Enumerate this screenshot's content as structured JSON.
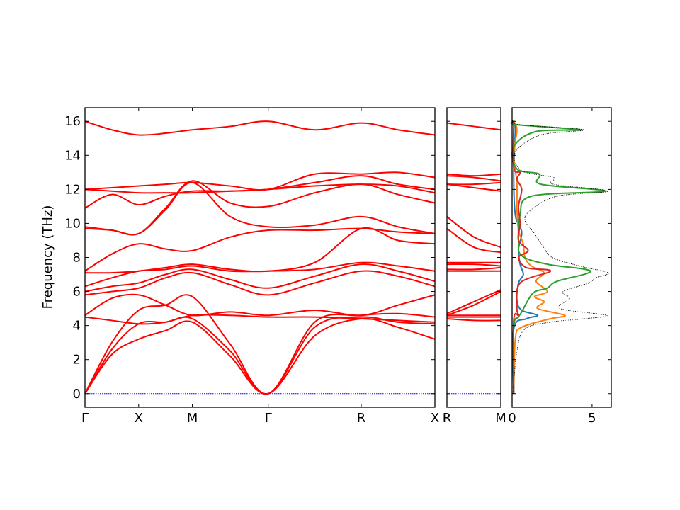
{
  "chart_data": [
    {
      "type": "line",
      "panel": "band-structure-main",
      "ylabel": "Frequency (THz)",
      "ylim": [
        -0.8,
        16.8
      ],
      "xlim": [
        0,
        2.803
      ],
      "yticks": [
        0,
        2,
        4,
        6,
        8,
        10,
        12,
        14,
        16
      ],
      "high_symmetry_points": [
        {
          "label": "Γ",
          "x": 0
        },
        {
          "label": "X",
          "x": 0.43
        },
        {
          "label": "M",
          "x": 0.86
        },
        {
          "label": "Γ",
          "x": 1.468
        },
        {
          "label": "R",
          "x": 2.213
        },
        {
          "label": "X",
          "x": 2.803
        }
      ],
      "series_color": "#ff0000",
      "zero_line_color": "#0000ff",
      "bands": [
        {
          "x": [
            0,
            0.215,
            0.43,
            0.645,
            0.86,
            1.164,
            1.468,
            1.84,
            2.213,
            2.508,
            2.803
          ],
          "y": [
            0.0,
            2.3,
            3.2,
            3.7,
            4.2,
            2.2,
            0.0,
            3.4,
            4.4,
            3.9,
            3.2
          ]
        },
        {
          "x": [
            0,
            0.215,
            0.43,
            0.645,
            0.86,
            1.164,
            1.468,
            1.84,
            2.213,
            2.508,
            2.803
          ],
          "y": [
            0.0,
            2.6,
            4.1,
            4.2,
            4.4,
            2.5,
            0.0,
            3.9,
            4.5,
            4.2,
            4.1
          ]
        },
        {
          "x": [
            0,
            0.215,
            0.43,
            0.645,
            0.86,
            1.164,
            1.468,
            1.84,
            2.213,
            2.508,
            2.803
          ],
          "y": [
            0.0,
            3.0,
            4.9,
            5.2,
            5.7,
            2.9,
            0.0,
            4.2,
            4.6,
            4.7,
            4.5
          ]
        },
        {
          "x": [
            0,
            0.215,
            0.43,
            0.645,
            0.86,
            1.164,
            1.468,
            1.84,
            2.213,
            2.508,
            2.803
          ],
          "y": [
            4.5,
            4.3,
            4.1,
            4.2,
            4.6,
            4.6,
            4.5,
            4.5,
            4.4,
            4.3,
            4.2
          ]
        },
        {
          "x": [
            0,
            0.215,
            0.43,
            0.645,
            0.86,
            1.164,
            1.468,
            1.84,
            2.213,
            2.508,
            2.803
          ],
          "y": [
            4.6,
            5.6,
            5.8,
            5.2,
            4.6,
            4.8,
            4.6,
            4.9,
            4.6,
            5.2,
            5.8
          ]
        },
        {
          "x": [
            0,
            0.215,
            0.43,
            0.645,
            0.86,
            1.164,
            1.468,
            1.84,
            2.213,
            2.508,
            2.803
          ],
          "y": [
            5.8,
            6.0,
            6.2,
            6.8,
            7.1,
            6.4,
            5.8,
            6.5,
            7.2,
            6.9,
            6.3
          ]
        },
        {
          "x": [
            0,
            0.215,
            0.43,
            0.645,
            0.86,
            1.164,
            1.468,
            1.84,
            2.213,
            2.508,
            2.803
          ],
          "y": [
            6.0,
            6.3,
            6.5,
            7.0,
            7.3,
            6.7,
            6.2,
            6.9,
            7.6,
            7.2,
            6.6
          ]
        },
        {
          "x": [
            0,
            0.215,
            0.43,
            0.645,
            0.86,
            1.164,
            1.468,
            1.84,
            2.213,
            2.508,
            2.803
          ],
          "y": [
            6.3,
            6.8,
            7.2,
            7.3,
            7.5,
            7.2,
            7.2,
            7.3,
            7.7,
            7.5,
            7.2
          ]
        },
        {
          "x": [
            0,
            0.215,
            0.43,
            0.645,
            0.86,
            1.164,
            1.468,
            1.84,
            2.213,
            2.508,
            2.803
          ],
          "y": [
            7.1,
            7.1,
            7.2,
            7.4,
            7.6,
            7.3,
            7.2,
            7.7,
            9.7,
            9.0,
            8.8
          ]
        },
        {
          "x": [
            0,
            0.215,
            0.43,
            0.645,
            0.86,
            1.164,
            1.468,
            1.84,
            2.213,
            2.508,
            2.803
          ],
          "y": [
            7.2,
            8.2,
            8.8,
            8.5,
            8.4,
            9.2,
            9.6,
            9.6,
            9.7,
            9.5,
            9.4
          ]
        },
        {
          "x": [
            0,
            0.215,
            0.43,
            0.645,
            0.86,
            1.164,
            1.468,
            1.84,
            2.213,
            2.508,
            2.803
          ],
          "y": [
            9.7,
            9.6,
            9.4,
            10.8,
            12.4,
            10.4,
            9.8,
            9.9,
            10.4,
            9.8,
            9.4
          ]
        },
        {
          "x": [
            0,
            0.215,
            0.43,
            0.645,
            0.86,
            1.164,
            1.468,
            1.84,
            2.213,
            2.508,
            2.803
          ],
          "y": [
            9.8,
            9.6,
            9.4,
            10.9,
            12.5,
            11.2,
            11.0,
            11.8,
            12.3,
            11.7,
            11.2
          ]
        },
        {
          "x": [
            0,
            0.215,
            0.43,
            0.645,
            0.86,
            1.164,
            1.468,
            1.84,
            2.213,
            2.508,
            2.803
          ],
          "y": [
            10.9,
            11.7,
            11.1,
            11.6,
            11.9,
            11.9,
            12.0,
            12.2,
            12.3,
            12.2,
            11.8
          ]
        },
        {
          "x": [
            0,
            0.215,
            0.43,
            0.645,
            0.86,
            1.164,
            1.468,
            1.84,
            2.213,
            2.508,
            2.803
          ],
          "y": [
            12.0,
            11.9,
            11.8,
            11.8,
            11.8,
            11.9,
            12.0,
            12.4,
            12.8,
            12.3,
            12.0
          ]
        },
        {
          "x": [
            0,
            0.215,
            0.43,
            0.645,
            0.86,
            1.164,
            1.468,
            1.84,
            2.213,
            2.508,
            2.803
          ],
          "y": [
            12.0,
            12.1,
            12.2,
            12.3,
            12.4,
            12.2,
            12.0,
            12.9,
            12.9,
            13.0,
            12.7
          ]
        },
        {
          "x": [
            0,
            0.215,
            0.43,
            0.645,
            0.86,
            1.164,
            1.468,
            1.84,
            2.213,
            2.508,
            2.803
          ],
          "y": [
            16.0,
            15.5,
            15.2,
            15.3,
            15.5,
            15.7,
            16.0,
            15.5,
            15.9,
            15.5,
            15.2
          ]
        }
      ]
    },
    {
      "type": "line",
      "panel": "band-structure-R-M",
      "ylim": [
        -0.8,
        16.8
      ],
      "high_symmetry_points": [
        {
          "label": "R",
          "x": 0
        },
        {
          "label": "M",
          "x": 0.43
        }
      ],
      "series_color": "#ff0000",
      "bands": [
        {
          "x": [
            0,
            0.215,
            0.43
          ],
          "y": [
            4.4,
            4.3,
            4.3
          ]
        },
        {
          "x": [
            0,
            0.215,
            0.43
          ],
          "y": [
            4.5,
            4.5,
            4.5
          ]
        },
        {
          "x": [
            0,
            0.215,
            0.43
          ],
          "y": [
            4.6,
            4.6,
            4.6
          ]
        },
        {
          "x": [
            0,
            0.215,
            0.43
          ],
          "y": [
            4.6,
            5.2,
            6.0
          ]
        },
        {
          "x": [
            0,
            0.215,
            0.43
          ],
          "y": [
            4.7,
            5.4,
            6.1
          ]
        },
        {
          "x": [
            0,
            0.215,
            0.43
          ],
          "y": [
            7.2,
            7.2,
            7.2
          ]
        },
        {
          "x": [
            0,
            0.215,
            0.43
          ],
          "y": [
            7.3,
            7.3,
            7.4
          ]
        },
        {
          "x": [
            0,
            0.215,
            0.43
          ],
          "y": [
            7.6,
            7.6,
            7.5
          ]
        },
        {
          "x": [
            0,
            0.215,
            0.43
          ],
          "y": [
            7.7,
            7.7,
            7.7
          ]
        },
        {
          "x": [
            0,
            0.215,
            0.43
          ],
          "y": [
            9.7,
            8.6,
            8.3
          ]
        },
        {
          "x": [
            0,
            0.215,
            0.43
          ],
          "y": [
            10.4,
            9.2,
            8.6
          ]
        },
        {
          "x": [
            0,
            0.215,
            0.43
          ],
          "y": [
            12.3,
            12.1,
            11.9
          ]
        },
        {
          "x": [
            0,
            0.215,
            0.43
          ],
          "y": [
            12.3,
            12.3,
            12.4
          ]
        },
        {
          "x": [
            0,
            0.215,
            0.43
          ],
          "y": [
            12.8,
            12.7,
            12.5
          ]
        },
        {
          "x": [
            0,
            0.215,
            0.43
          ],
          "y": [
            12.9,
            12.8,
            12.9
          ]
        },
        {
          "x": [
            0,
            0.215,
            0.43
          ],
          "y": [
            15.9,
            15.7,
            15.5
          ]
        }
      ]
    },
    {
      "type": "line",
      "panel": "projected-dos",
      "xlim": [
        0,
        6.2
      ],
      "xticks": [
        0,
        5
      ],
      "ylim": [
        -0.8,
        16.8
      ],
      "series": [
        {
          "color": "#1f77b4",
          "style": "solid",
          "points": [
            [
              0.1,
              0
            ],
            [
              0.1,
              3.8
            ],
            [
              0.9,
              4.4
            ],
            [
              1.6,
              4.6
            ],
            [
              0.6,
              4.9
            ],
            [
              0.3,
              5.5
            ],
            [
              0.4,
              6.5
            ],
            [
              0.7,
              7.0
            ],
            [
              0.5,
              7.6
            ],
            [
              0.4,
              8.5
            ],
            [
              0.6,
              9.5
            ],
            [
              0.2,
              10.5
            ],
            [
              0.1,
              13
            ],
            [
              0.2,
              15.5
            ],
            [
              0.1,
              16
            ]
          ]
        },
        {
          "color": "#ff7f0e",
          "style": "solid",
          "points": [
            [
              0.1,
              0
            ],
            [
              0.2,
              3.2
            ],
            [
              0.6,
              3.9
            ],
            [
              2.4,
              4.4
            ],
            [
              3.3,
              4.6
            ],
            [
              1.6,
              5.0
            ],
            [
              2.0,
              5.4
            ],
            [
              1.4,
              5.7
            ],
            [
              2.2,
              6.0
            ],
            [
              1.5,
              6.6
            ],
            [
              2.0,
              7.1
            ],
            [
              1.2,
              7.5
            ],
            [
              0.8,
              8.0
            ],
            [
              0.7,
              8.8
            ],
            [
              0.4,
              9.6
            ],
            [
              0.3,
              11
            ],
            [
              0.3,
              12.4
            ],
            [
              0.1,
              14
            ],
            [
              0.3,
              15.5
            ],
            [
              0.1,
              16
            ]
          ]
        },
        {
          "color": "#2ca02c",
          "style": "solid",
          "points": [
            [
              0.1,
              0
            ],
            [
              0.1,
              3.9
            ],
            [
              0.4,
              4.5
            ],
            [
              0.6,
              4.8
            ],
            [
              1.3,
              5.9
            ],
            [
              2.2,
              6.2
            ],
            [
              2.8,
              6.6
            ],
            [
              4.9,
              7.2
            ],
            [
              2.2,
              7.6
            ],
            [
              0.6,
              8.1
            ],
            [
              0.4,
              9.0
            ],
            [
              0.5,
              10.5
            ],
            [
              1.2,
              11.6
            ],
            [
              5.8,
              11.9
            ],
            [
              1.8,
              12.3
            ],
            [
              1.7,
              12.9
            ],
            [
              0.3,
              13.2
            ],
            [
              0.1,
              14.5
            ],
            [
              1.5,
              15.4
            ],
            [
              4.3,
              15.5
            ],
            [
              0.3,
              15.8
            ],
            [
              0.1,
              16
            ]
          ]
        },
        {
          "color": "#d62728",
          "style": "solid",
          "points": [
            [
              0.1,
              0
            ],
            [
              0.1,
              4.3
            ],
            [
              0.4,
              4.6
            ],
            [
              0.3,
              5.0
            ],
            [
              0.5,
              6.5
            ],
            [
              2.4,
              7.2
            ],
            [
              0.9,
              7.4
            ],
            [
              0.4,
              8.0
            ],
            [
              1.0,
              8.4
            ],
            [
              0.4,
              9.0
            ],
            [
              0.5,
              10.0
            ],
            [
              0.4,
              11.0
            ],
            [
              0.6,
              12.0
            ],
            [
              0.3,
              12.6
            ],
            [
              0.5,
              13.0
            ],
            [
              0.1,
              13.3
            ],
            [
              0.1,
              16
            ]
          ]
        },
        {
          "color": "#000000",
          "style": "dotted",
          "points": [
            [
              0.05,
              0
            ],
            [
              0.3,
              2.5
            ],
            [
              0.8,
              3.8
            ],
            [
              2.4,
              4.2
            ],
            [
              4.5,
              4.4
            ],
            [
              5.9,
              4.6
            ],
            [
              3.0,
              5.0
            ],
            [
              3.6,
              5.6
            ],
            [
              3.2,
              6.0
            ],
            [
              4.8,
              6.5
            ],
            [
              5.2,
              6.8
            ],
            [
              6.0,
              7.1
            ],
            [
              4.2,
              7.5
            ],
            [
              2.5,
              8.0
            ],
            [
              1.9,
              8.7
            ],
            [
              1.4,
              9.4
            ],
            [
              0.8,
              10.2
            ],
            [
              1.2,
              10.8
            ],
            [
              2.8,
              11.6
            ],
            [
              6.0,
              11.9
            ],
            [
              2.6,
              12.3
            ],
            [
              2.6,
              12.7
            ],
            [
              0.6,
              13.1
            ],
            [
              0.2,
              14.2
            ],
            [
              1.8,
              15.2
            ],
            [
              4.5,
              15.5
            ],
            [
              0.5,
              15.8
            ],
            [
              0.05,
              16.1
            ]
          ]
        }
      ]
    }
  ]
}
